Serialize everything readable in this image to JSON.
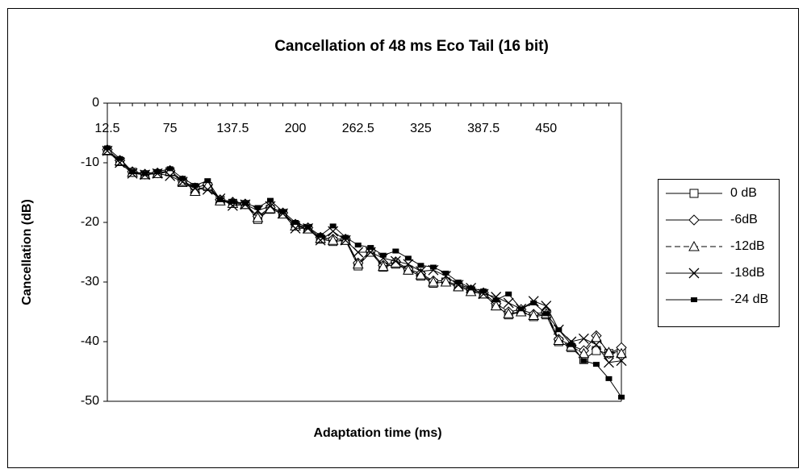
{
  "chart_data": {
    "type": "line",
    "title": "Cancellation of 48 ms Eco Tail (16 bit)",
    "x_label": "Adaptation time (ms)",
    "y_label": "Cancellation (dB)",
    "categories": [
      "12.5",
      null,
      null,
      null,
      null,
      "75",
      null,
      null,
      null,
      null,
      "137.5",
      null,
      null,
      null,
      null,
      "200",
      null,
      null,
      null,
      null,
      "262.5",
      null,
      null,
      null,
      null,
      "325",
      null,
      null,
      null,
      null,
      "387.5",
      null,
      null,
      null,
      null,
      "450",
      null,
      null,
      null,
      null,
      null,
      null
    ],
    "ylim": [
      -50,
      0
    ],
    "yticks": [
      0,
      -10,
      -20,
      -30,
      -40,
      -50
    ],
    "series": [
      {
        "name": "0 dB",
        "color": "#000000",
        "marker": "square",
        "dash": false,
        "values": [
          -8,
          -9.8,
          -11.6,
          -12,
          -11.8,
          -11.5,
          -13.3,
          -14.5,
          -14,
          -16.3,
          -16.8,
          -17,
          -19.5,
          -17.8,
          -18.5,
          -20.5,
          -21,
          -22.8,
          -23.2,
          -23,
          -27.3,
          -25,
          -27.5,
          -27,
          -28,
          -29,
          -30.2,
          -30,
          -30.8,
          -31.5,
          -32,
          -34,
          -35.5,
          -35,
          -35.8,
          -35.5,
          -40,
          -41,
          -43,
          -41.5,
          -42,
          -41.5
        ]
      },
      {
        "name": "-6dB",
        "color": "#000000",
        "marker": "diamond",
        "dash": false,
        "values": [
          -7.8,
          -9.6,
          -11.5,
          -11.9,
          -11.7,
          -11.3,
          -13,
          -14.2,
          -13.6,
          -16.2,
          -16.6,
          -16.9,
          -19,
          -17.5,
          -18.4,
          -20.3,
          -20.9,
          -22.5,
          -22.8,
          -22.8,
          -26.8,
          -24.8,
          -27.2,
          -26.6,
          -27.8,
          -28.6,
          -29.8,
          -29.8,
          -30.6,
          -31.3,
          -31.8,
          -33.6,
          -35,
          -34.6,
          -35.4,
          -35,
          -39.6,
          -40.6,
          -41.5,
          -39,
          -42,
          -41
        ]
      },
      {
        "name": "-12dB",
        "color": "#000000",
        "marker": "triangle",
        "dash": true,
        "values": [
          -7.9,
          -9.7,
          -11.6,
          -12,
          -11.8,
          -11.4,
          -13.1,
          -14.8,
          -13.8,
          -16.4,
          -16.8,
          -17,
          -19.2,
          -17.7,
          -18.6,
          -20.6,
          -21.1,
          -22.7,
          -23,
          -23,
          -27,
          -25,
          -27.4,
          -26.8,
          -28,
          -28.8,
          -30,
          -30,
          -30.8,
          -31.6,
          -32,
          -34,
          -35.3,
          -35,
          -35.6,
          -35.3,
          -39.8,
          -40.8,
          -42,
          -39.3,
          -41.8,
          -42
        ]
      },
      {
        "name": "-18dB",
        "color": "#000000",
        "marker": "x",
        "dash": false,
        "values": [
          -8,
          -10,
          -11.8,
          -12,
          -11.8,
          -12.2,
          -13.2,
          -14.3,
          -14.5,
          -16,
          -17.2,
          -17,
          -18,
          -17.3,
          -18.5,
          -21,
          -21,
          -23,
          -21.5,
          -23,
          -25,
          -25,
          -26,
          -26.5,
          -27,
          -28.2,
          -28,
          -29,
          -30.5,
          -31,
          -32,
          -32.5,
          -33.5,
          -34.5,
          -33.2,
          -34,
          -38,
          -40,
          -39.5,
          -40.5,
          -43.5,
          -43.2
        ]
      },
      {
        "name": "-24 dB",
        "color": "#000000",
        "marker": "filled-square",
        "dash": false,
        "values": [
          -7.5,
          -9.3,
          -11.5,
          -11.8,
          -11.5,
          -11,
          -12.6,
          -13.8,
          -13,
          -16.2,
          -16.5,
          -16.8,
          -17.5,
          -16.3,
          -18.2,
          -20,
          -20.8,
          -22.2,
          -20.6,
          -22.5,
          -23.8,
          -24.2,
          -25.5,
          -24.8,
          -26,
          -27.2,
          -27.5,
          -28.5,
          -30,
          -31,
          -31.5,
          -33,
          -32,
          -34.5,
          -33.5,
          -35.3,
          -38,
          -40.5,
          -43.2,
          -43.8,
          -46.2,
          -49.3
        ]
      }
    ]
  }
}
